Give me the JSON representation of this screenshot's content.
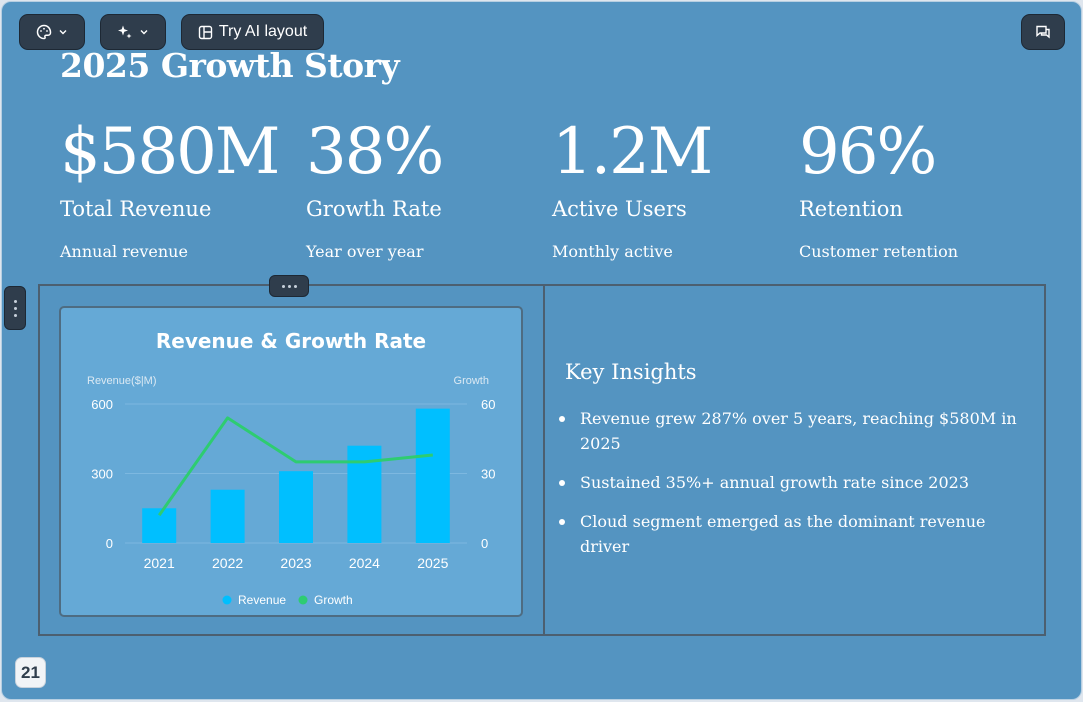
{
  "toolbar": {
    "theme_icon": "palette-icon",
    "ai_icon": "sparkle-icon",
    "layout_icon": "layout-icon",
    "try_ai_label": "Try AI layout",
    "comment_icon": "comment-icon",
    "chevron_icon": "chevron-down-icon"
  },
  "slide": {
    "title": "2025 Growth Story",
    "page_number": "21",
    "background": "#5494c1"
  },
  "stats": [
    {
      "value": "$580M",
      "label": "Total Revenue",
      "sub": "Annual revenue"
    },
    {
      "value": "38%",
      "label": "Growth Rate",
      "sub": "Year over year"
    },
    {
      "value": "1.2M",
      "label": "Active Users",
      "sub": "Monthly active"
    },
    {
      "value": "96%",
      "label": "Retention",
      "sub": "Customer retention"
    }
  ],
  "chart_data": {
    "type": "bar",
    "title": "Revenue & Growth Rate",
    "categories": [
      "2021",
      "2022",
      "2023",
      "2024",
      "2025"
    ],
    "series": [
      {
        "name": "Revenue",
        "type": "bar",
        "axis": "left",
        "color": "#00bfff",
        "values": [
          150,
          230,
          310,
          420,
          580
        ]
      },
      {
        "name": "Growth",
        "type": "line",
        "axis": "right",
        "color": "#2ecc71",
        "values": [
          12,
          54,
          35,
          35,
          38
        ]
      }
    ],
    "ylabel_left": "Revenue($|M)",
    "ylabel_right": "Growth",
    "ylim_left": [
      0,
      600
    ],
    "ylim_right": [
      0,
      60
    ],
    "yticks_left": [
      "0",
      "300",
      "600"
    ],
    "yticks_right": [
      "0",
      "30",
      "60"
    ],
    "legend_position": "bottom",
    "grid": true
  },
  "insights": {
    "title": "Key Insights",
    "items": [
      "Revenue grew 287% over 5 years, reaching $580M in 2025",
      "Sustained 35%+ annual growth rate since 2023",
      "Cloud segment emerged as the dominant revenue driver"
    ]
  }
}
